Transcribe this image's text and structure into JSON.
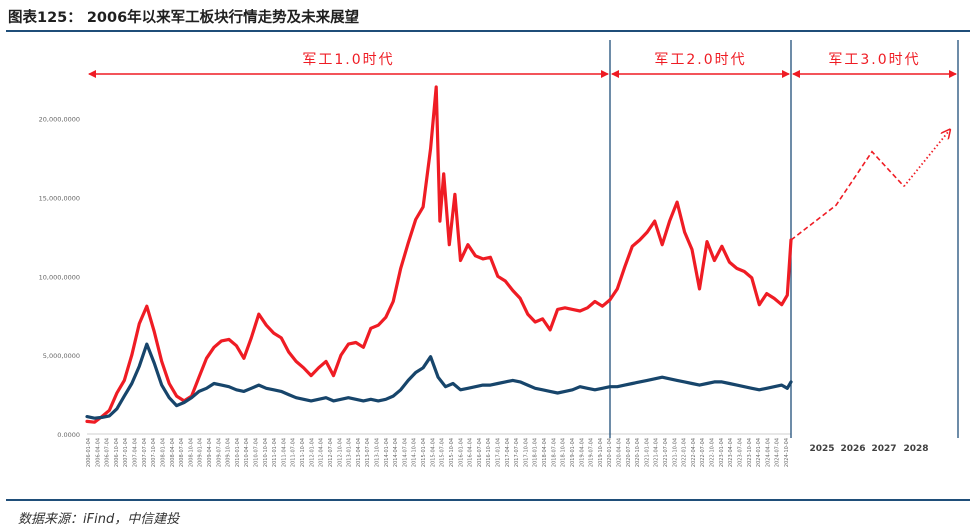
{
  "header": {
    "title": "图表125：   2006年以来军工板块行情走势及未来展望"
  },
  "source": "数据来源：iFind，中信建投",
  "colors": {
    "red": "#ef1c24",
    "blue": "#17456b",
    "divider": "#1f4e79",
    "tick": "#666666"
  },
  "chart_data": {
    "type": "line",
    "ylim": [
      0,
      22000000
    ],
    "y_ticks": [
      0,
      5000000,
      10000000,
      15000000,
      20000000
    ],
    "y_tick_labels": [
      "0.0000",
      "5,000,0000",
      "10,000,0000",
      "15,000,0000",
      "20,000,0000"
    ],
    "x_tick_labels": [
      "2006-01-04",
      "2006-04-04",
      "2006-07-04",
      "2006-10-04",
      "2007-01-04",
      "2007-04-04",
      "2007-07-04",
      "2007-10-04",
      "2008-01-04",
      "2008-04-04",
      "2008-07-04",
      "2008-10-04",
      "2009-01-04",
      "2009-04-04",
      "2009-07-04",
      "2009-10-04",
      "2010-01-04",
      "2010-04-04",
      "2010-07-04",
      "2010-10-04",
      "2011-01-04",
      "2011-04-04",
      "2011-07-04",
      "2011-10-04",
      "2012-01-04",
      "2012-04-04",
      "2012-07-04",
      "2012-10-04",
      "2013-01-04",
      "2013-04-04",
      "2013-07-04",
      "2013-10-04",
      "2014-01-04",
      "2014-04-04",
      "2014-07-04",
      "2014-10-04",
      "2015-01-04",
      "2015-04-04",
      "2015-07-04",
      "2015-10-04",
      "2016-01-04",
      "2016-04-04",
      "2016-07-04",
      "2016-10-04",
      "2017-01-04",
      "2017-04-04",
      "2017-07-04",
      "2017-10-04",
      "2018-01-04",
      "2018-04-04",
      "2018-07-04",
      "2018-10-04",
      "2019-01-04",
      "2019-04-04",
      "2019-07-04",
      "2019-10-04",
      "2020-01-04",
      "2020-04-04",
      "2020-07-04",
      "2020-10-04",
      "2021-01-04",
      "2021-04-04",
      "2021-07-04",
      "2021-10-04",
      "2022-01-04",
      "2022-04-04",
      "2022-07-04",
      "2022-10-04",
      "2023-01-04",
      "2023-04-04",
      "2023-07-04",
      "2023-10-04",
      "2024-01-04",
      "2024-04-04",
      "2024-07-04",
      "2024-10-04"
    ],
    "future_labels": [
      "2025",
      "2026",
      "2027",
      "2028"
    ],
    "eras": [
      {
        "label": "军工1.0时代",
        "start": "2006",
        "end": "2019-07"
      },
      {
        "label": "军工2.0时代",
        "start": "2019-07",
        "end": "2024-10"
      },
      {
        "label": "军工3.0时代",
        "start": "2024-10",
        "end": "2028"
      }
    ],
    "series": [
      {
        "x": [
          2006.0,
          2006.2,
          2006.4,
          2006.6,
          2006.8,
          2007.0,
          2007.2,
          2007.4,
          2007.6,
          2007.8,
          2008.0,
          2008.2,
          2008.4,
          2008.6,
          2008.8,
          2009.0,
          2009.2,
          2009.4,
          2009.6,
          2009.8,
          2010.0,
          2010.2,
          2010.4,
          2010.6,
          2010.8,
          2011.0,
          2011.2,
          2011.4,
          2011.6,
          2011.8,
          2012.0,
          2012.2,
          2012.4,
          2012.6,
          2012.8,
          2013.0,
          2013.2,
          2013.4,
          2013.6,
          2013.8,
          2014.0,
          2014.2,
          2014.4,
          2014.6,
          2014.8,
          2015.0,
          2015.2,
          2015.35,
          2015.45,
          2015.55,
          2015.7,
          2015.85,
          2016.0,
          2016.2,
          2016.4,
          2016.6,
          2016.8,
          2017.0,
          2017.2,
          2017.4,
          2017.6,
          2017.8,
          2018.0,
          2018.2,
          2018.4,
          2018.6,
          2018.8,
          2019.0,
          2019.2,
          2019.4,
          2019.6,
          2019.8,
          2020.0,
          2020.2,
          2020.4,
          2020.6,
          2020.8,
          2021.0,
          2021.2,
          2021.4,
          2021.6,
          2021.8,
          2022.0,
          2022.2,
          2022.4,
          2022.6,
          2022.8,
          2023.0,
          2023.2,
          2023.4,
          2023.6,
          2023.8,
          2024.0,
          2024.2,
          2024.4,
          2024.6,
          2024.75,
          2024.85
        ],
        "values": [
          800000,
          750000,
          1100000,
          1500000,
          2600000,
          3400000,
          5000000,
          7000000,
          8100000,
          6500000,
          4600000,
          3200000,
          2400000,
          2100000,
          2400000,
          3600000,
          4800000,
          5500000,
          5900000,
          6000000,
          5600000,
          4800000,
          6100000,
          7600000,
          6900000,
          6400000,
          6100000,
          5200000,
          4600000,
          4200000,
          3700000,
          4200000,
          4600000,
          3700000,
          5000000,
          5700000,
          5800000,
          5500000,
          6700000,
          6900000,
          7400000,
          8400000,
          10500000,
          12100000,
          13600000,
          14400000,
          18100000,
          22000000,
          13500000,
          16500000,
          12000000,
          15200000,
          11000000,
          12000000,
          11300000,
          11100000,
          11200000,
          10000000,
          9700000,
          9100000,
          8600000,
          7600000,
          7100000,
          7300000,
          6600000,
          7900000,
          8000000,
          7900000,
          7800000,
          8000000,
          8400000,
          8100000,
          8500000,
          9200000,
          10600000,
          11900000,
          12300000,
          12800000,
          13500000,
          12000000,
          13500000,
          14700000,
          12800000,
          11700000,
          9200000,
          12200000,
          11000000,
          11900000,
          10900000,
          10500000,
          10300000,
          9900000,
          8200000,
          8900000,
          8600000,
          8200000,
          8800000,
          12300000
        ]
      },
      {
        "x": [
          2006.0,
          2006.2,
          2006.4,
          2006.6,
          2006.8,
          2007.0,
          2007.2,
          2007.4,
          2007.6,
          2007.8,
          2008.0,
          2008.2,
          2008.4,
          2008.6,
          2008.8,
          2009.0,
          2009.2,
          2009.4,
          2009.6,
          2009.8,
          2010.0,
          2010.2,
          2010.4,
          2010.6,
          2010.8,
          2011.0,
          2011.2,
          2011.4,
          2011.6,
          2011.8,
          2012.0,
          2012.2,
          2012.4,
          2012.6,
          2012.8,
          2013.0,
          2013.2,
          2013.4,
          2013.6,
          2013.8,
          2014.0,
          2014.2,
          2014.4,
          2014.6,
          2014.8,
          2015.0,
          2015.2,
          2015.4,
          2015.6,
          2015.8,
          2016.0,
          2016.2,
          2016.4,
          2016.6,
          2016.8,
          2017.0,
          2017.2,
          2017.4,
          2017.6,
          2017.8,
          2018.0,
          2018.2,
          2018.4,
          2018.6,
          2018.8,
          2019.0,
          2019.2,
          2019.4,
          2019.6,
          2019.8,
          2020.0,
          2020.2,
          2020.4,
          2020.6,
          2020.8,
          2021.0,
          2021.2,
          2021.4,
          2021.6,
          2021.8,
          2022.0,
          2022.2,
          2022.4,
          2022.6,
          2022.8,
          2023.0,
          2023.2,
          2023.4,
          2023.6,
          2023.8,
          2024.0,
          2024.2,
          2024.4,
          2024.6,
          2024.75,
          2024.85
        ],
        "values": [
          1100000,
          1000000,
          1050000,
          1150000,
          1600000,
          2400000,
          3200000,
          4300000,
          5700000,
          4500000,
          3100000,
          2300000,
          1800000,
          2000000,
          2300000,
          2700000,
          2900000,
          3200000,
          3100000,
          3000000,
          2800000,
          2700000,
          2900000,
          3100000,
          2900000,
          2800000,
          2700000,
          2500000,
          2300000,
          2200000,
          2100000,
          2200000,
          2300000,
          2100000,
          2200000,
          2300000,
          2200000,
          2100000,
          2200000,
          2100000,
          2200000,
          2400000,
          2800000,
          3400000,
          3900000,
          4200000,
          4900000,
          3600000,
          3000000,
          3200000,
          2800000,
          2900000,
          3000000,
          3100000,
          3100000,
          3200000,
          3300000,
          3400000,
          3300000,
          3100000,
          2900000,
          2800000,
          2700000,
          2600000,
          2700000,
          2800000,
          3000000,
          2900000,
          2800000,
          2900000,
          3000000,
          3000000,
          3100000,
          3200000,
          3300000,
          3400000,
          3500000,
          3600000,
          3500000,
          3400000,
          3300000,
          3200000,
          3100000,
          3200000,
          3300000,
          3300000,
          3200000,
          3100000,
          3000000,
          2900000,
          2800000,
          2900000,
          3000000,
          3100000,
          2900000,
          3300000
        ]
      }
    ],
    "projection": [
      {
        "x": 2024.85,
        "y": 12300000
      },
      {
        "x": 2026.0,
        "y": 14500000
      },
      {
        "x": 2027.0,
        "y": 17900000
      },
      {
        "x": 2027.9,
        "y": 15700000
      },
      {
        "x": 2029.2,
        "y": 19300000
      }
    ]
  }
}
